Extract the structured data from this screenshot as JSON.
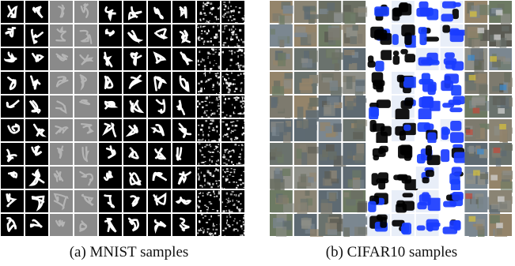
{
  "figure": {
    "panels": [
      {
        "caption": "(a) MNIST samples",
        "rows": 10,
        "cols": 10,
        "style": "mnist",
        "column_groups": [
          "white",
          "white",
          "gray",
          "gray",
          "white",
          "white",
          "white",
          "white",
          "noise",
          "noise"
        ]
      },
      {
        "caption": "(b) CIFAR10 samples",
        "rows": 10,
        "cols": 10,
        "style": "cifar",
        "column_groups": [
          "muted",
          "muted",
          "muted",
          "muted",
          "saturated",
          "saturated",
          "saturated",
          "saturated",
          "muted",
          "muted"
        ]
      }
    ],
    "colors": {
      "mnist_bg": "#000000",
      "mnist_fg": "#ffffff",
      "mnist_gray_bg": "#8a8a8a",
      "cifar_blue": "#1a3cff",
      "cifar_white": "#ffffff",
      "grid_line": "#ffffff"
    }
  }
}
